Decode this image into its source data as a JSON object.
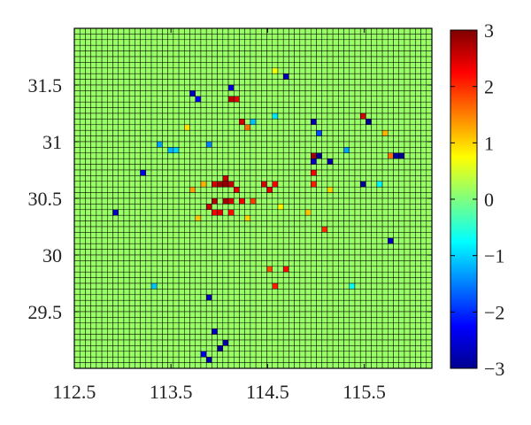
{
  "chart_data": {
    "type": "heatmap",
    "title": "",
    "xlabel": "",
    "ylabel": "",
    "xlim": [
      112.5,
      116.2
    ],
    "ylim": [
      29.0,
      32.0
    ],
    "grid_cols": 65,
    "grid_rows": 60,
    "base_value": 0.15,
    "x_ticks": [
      112.5,
      113.5,
      114.5,
      115.5
    ],
    "y_ticks": [
      29.5,
      30,
      30.5,
      31,
      31.5
    ],
    "x_tick_labels": [
      "112.5",
      "113.5",
      "114.5",
      "115.5"
    ],
    "y_tick_labels": [
      "29.5",
      "30",
      "30.5",
      "31",
      "31.5"
    ],
    "colorbar": {
      "min": -3,
      "max": 3,
      "ticks": [
        3,
        2,
        1,
        0,
        -1,
        -2,
        -3
      ],
      "tick_labels": [
        "3",
        "2",
        "1",
        "0",
        "−1",
        "−2",
        "−3"
      ],
      "colormap": "jet"
    },
    "cells": [
      {
        "lon": 114.05,
        "lat": 30.7,
        "value": 2.6
      },
      {
        "lon": 114.0,
        "lat": 30.65,
        "value": 2.8
      },
      {
        "lon": 114.1,
        "lat": 30.65,
        "value": 2.7
      },
      {
        "lon": 113.95,
        "lat": 30.6,
        "value": 2.5
      },
      {
        "lon": 114.05,
        "lat": 30.6,
        "value": 2.9
      },
      {
        "lon": 114.15,
        "lat": 30.6,
        "value": 2.6
      },
      {
        "lon": 114.2,
        "lat": 30.55,
        "value": 2.4
      },
      {
        "lon": 113.95,
        "lat": 30.5,
        "value": 2.7
      },
      {
        "lon": 114.05,
        "lat": 30.5,
        "value": 2.8
      },
      {
        "lon": 114.1,
        "lat": 30.5,
        "value": 2.5
      },
      {
        "lon": 114.25,
        "lat": 30.5,
        "value": 2.3
      },
      {
        "lon": 113.9,
        "lat": 30.45,
        "value": 2.6
      },
      {
        "lon": 114.0,
        "lat": 30.4,
        "value": 2.4
      },
      {
        "lon": 113.95,
        "lat": 30.35,
        "value": 2.3
      },
      {
        "lon": 114.1,
        "lat": 30.4,
        "value": 2.2
      },
      {
        "lon": 114.45,
        "lat": 30.6,
        "value": 2.5
      },
      {
        "lon": 114.55,
        "lat": 30.6,
        "value": 2.3
      },
      {
        "lon": 114.5,
        "lat": 30.55,
        "value": 2.4
      },
      {
        "lon": 114.35,
        "lat": 30.5,
        "value": 1.9
      },
      {
        "lon": 113.85,
        "lat": 30.6,
        "value": 1.2
      },
      {
        "lon": 114.25,
        "lat": 31.2,
        "value": 2.5
      },
      {
        "lon": 114.3,
        "lat": 31.15,
        "value": 2.3
      },
      {
        "lon": 114.15,
        "lat": 31.4,
        "value": 2.7
      },
      {
        "lon": 114.2,
        "lat": 31.35,
        "value": 2.4
      },
      {
        "lon": 114.3,
        "lat": 31.1,
        "value": 1.6
      },
      {
        "lon": 114.95,
        "lat": 30.75,
        "value": 2.3
      },
      {
        "lon": 114.95,
        "lat": 30.65,
        "value": 2.1
      },
      {
        "lon": 115.0,
        "lat": 30.9,
        "value": 2.8
      },
      {
        "lon": 115.05,
        "lat": 30.85,
        "value": -2.9
      },
      {
        "lon": 115.0,
        "lat": 30.8,
        "value": -2.6
      },
      {
        "lon": 115.15,
        "lat": 30.8,
        "value": -2.8
      },
      {
        "lon": 114.95,
        "lat": 31.2,
        "value": -2.7
      },
      {
        "lon": 115.05,
        "lat": 31.05,
        "value": -1.8
      },
      {
        "lon": 115.1,
        "lat": 30.25,
        "value": 2.0
      },
      {
        "lon": 114.7,
        "lat": 29.9,
        "value": 2.2
      },
      {
        "lon": 114.55,
        "lat": 29.75,
        "value": 2.1
      },
      {
        "lon": 114.5,
        "lat": 29.85,
        "value": 1.8
      },
      {
        "lon": 113.75,
        "lat": 31.45,
        "value": -2.8
      },
      {
        "lon": 113.7,
        "lat": 31.45,
        "value": -2.6
      },
      {
        "lon": 113.8,
        "lat": 31.4,
        "value": -2.3
      },
      {
        "lon": 114.1,
        "lat": 31.5,
        "value": -2.5
      },
      {
        "lon": 114.7,
        "lat": 31.55,
        "value": -2.7
      },
      {
        "lon": 115.55,
        "lat": 31.2,
        "value": -2.9
      },
      {
        "lon": 115.5,
        "lat": 31.25,
        "value": 2.5
      },
      {
        "lon": 115.85,
        "lat": 30.85,
        "value": -2.8
      },
      {
        "lon": 115.9,
        "lat": 30.85,
        "value": -2.9
      },
      {
        "lon": 115.75,
        "lat": 30.85,
        "value": 1.6
      },
      {
        "lon": 115.5,
        "lat": 30.6,
        "value": -2.9
      },
      {
        "lon": 115.75,
        "lat": 30.1,
        "value": -2.7
      },
      {
        "lon": 112.9,
        "lat": 30.4,
        "value": -2.6
      },
      {
        "lon": 113.2,
        "lat": 30.75,
        "value": -2.4
      },
      {
        "lon": 113.9,
        "lat": 29.6,
        "value": -2.7
      },
      {
        "lon": 114.0,
        "lat": 29.2,
        "value": -2.9
      },
      {
        "lon": 114.05,
        "lat": 29.25,
        "value": -2.8
      },
      {
        "lon": 113.95,
        "lat": 29.3,
        "value": -2.6
      },
      {
        "lon": 113.85,
        "lat": 29.1,
        "value": -2.4
      },
      {
        "lon": 113.9,
        "lat": 29.05,
        "value": -2.7
      },
      {
        "lon": 113.5,
        "lat": 30.95,
        "value": -1.2
      },
      {
        "lon": 113.55,
        "lat": 30.95,
        "value": -1.0
      },
      {
        "lon": 113.4,
        "lat": 31.0,
        "value": -1.3
      },
      {
        "lon": 113.9,
        "lat": 31.0,
        "value": -1.5
      },
      {
        "lon": 114.35,
        "lat": 31.2,
        "value": -1.1
      },
      {
        "lon": 114.55,
        "lat": 31.25,
        "value": -0.9
      },
      {
        "lon": 115.3,
        "lat": 30.95,
        "value": -1.3
      },
      {
        "lon": 115.65,
        "lat": 30.6,
        "value": -0.8
      },
      {
        "lon": 113.65,
        "lat": 31.1,
        "value": 0.9
      },
      {
        "lon": 114.6,
        "lat": 31.6,
        "value": 0.7
      },
      {
        "lon": 115.15,
        "lat": 30.55,
        "value": 1.0
      },
      {
        "lon": 114.9,
        "lat": 30.35,
        "value": 1.1
      },
      {
        "lon": 115.7,
        "lat": 31.05,
        "value": 1.2
      },
      {
        "lon": 113.75,
        "lat": 30.55,
        "value": 1.3
      },
      {
        "lon": 113.8,
        "lat": 30.3,
        "value": 1.1
      },
      {
        "lon": 114.3,
        "lat": 30.3,
        "value": 1.0
      },
      {
        "lon": 113.3,
        "lat": 29.75,
        "value": -1.1
      },
      {
        "lon": 114.65,
        "lat": 30.45,
        "value": 0.8
      },
      {
        "lon": 115.35,
        "lat": 29.75,
        "value": -0.7
      }
    ]
  }
}
